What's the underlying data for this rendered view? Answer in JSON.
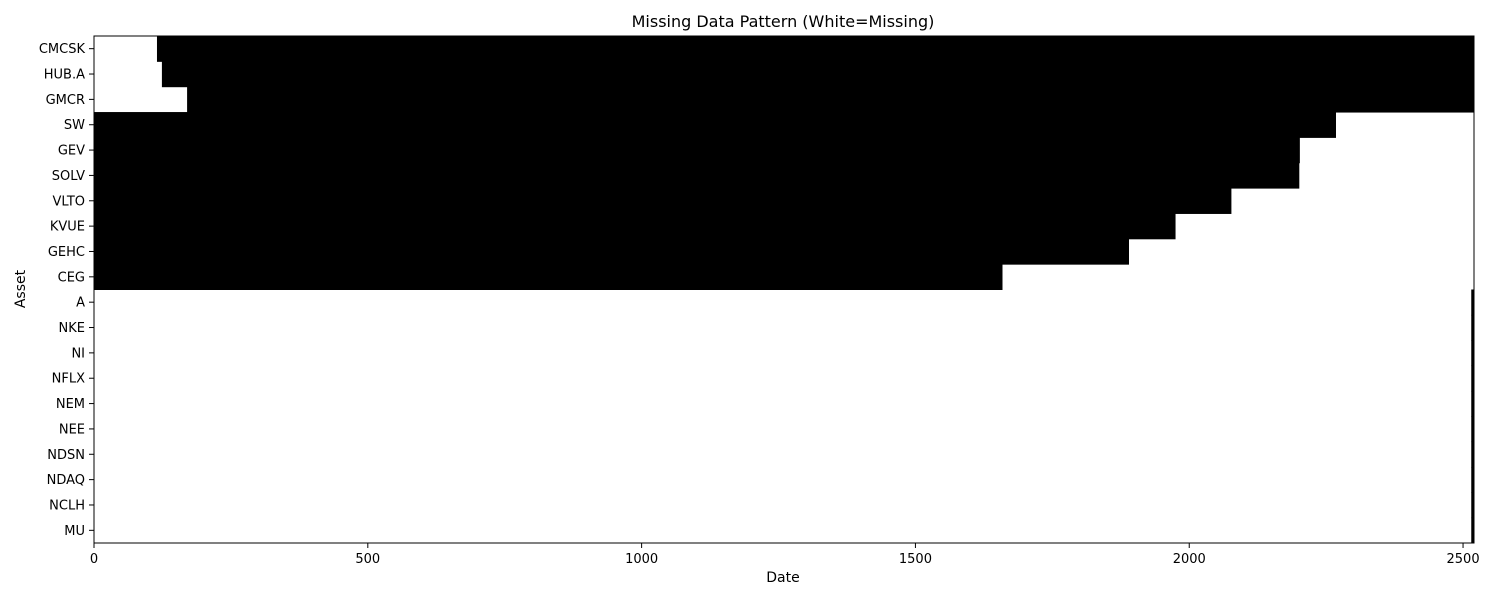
{
  "chart_data": {
    "type": "heatmap",
    "title": "Missing Data Pattern (White=Missing)",
    "xlabel": "Date",
    "ylabel": "Asset",
    "xlim": [
      0,
      2520
    ],
    "x_ticks": [
      0,
      500,
      1000,
      1500,
      2000,
      2500
    ],
    "colors": {
      "present": "#000000",
      "missing": "#ffffff"
    },
    "rows": [
      {
        "asset": "CMCSK",
        "present_from": 115,
        "present_to": 2520
      },
      {
        "asset": "HUB.A",
        "present_from": 124,
        "present_to": 2520
      },
      {
        "asset": "GMCR",
        "present_from": 170,
        "present_to": 2520
      },
      {
        "asset": "SW",
        "present_from": 0,
        "present_to": 2268
      },
      {
        "asset": "GEV",
        "present_from": 0,
        "present_to": 2202
      },
      {
        "asset": "SOLV",
        "present_from": 0,
        "present_to": 2201
      },
      {
        "asset": "VLTO",
        "present_from": 0,
        "present_to": 2077
      },
      {
        "asset": "KVUE",
        "present_from": 0,
        "present_to": 1975
      },
      {
        "asset": "GEHC",
        "present_from": 0,
        "present_to": 1890
      },
      {
        "asset": "CEG",
        "present_from": 0,
        "present_to": 1659
      },
      {
        "asset": "A",
        "present_from": 2515,
        "present_to": 2520
      },
      {
        "asset": "NKE",
        "present_from": 2515,
        "present_to": 2520
      },
      {
        "asset": "NI",
        "present_from": 2515,
        "present_to": 2520
      },
      {
        "asset": "NFLX",
        "present_from": 2515,
        "present_to": 2520
      },
      {
        "asset": "NEM",
        "present_from": 2515,
        "present_to": 2520
      },
      {
        "asset": "NEE",
        "present_from": 2515,
        "present_to": 2520
      },
      {
        "asset": "NDSN",
        "present_from": 2515,
        "present_to": 2520
      },
      {
        "asset": "NDAQ",
        "present_from": 2515,
        "present_to": 2520
      },
      {
        "asset": "NCLH",
        "present_from": 2515,
        "present_to": 2520
      },
      {
        "asset": "MU",
        "present_from": 2515,
        "present_to": 2520
      }
    ]
  }
}
